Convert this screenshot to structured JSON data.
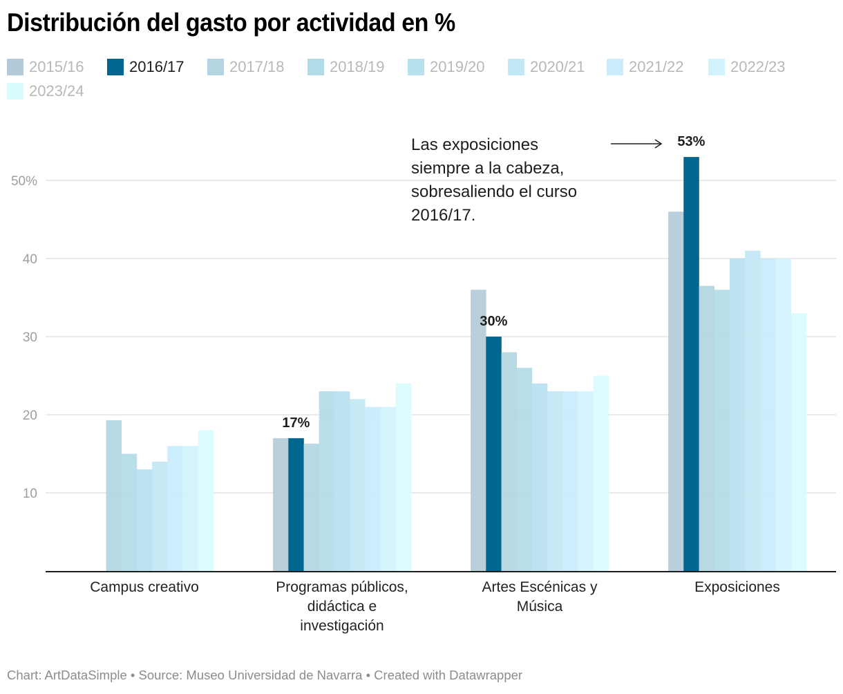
{
  "title": "Distribución del gasto por actividad en %",
  "legend": {
    "highlighted": "2016/17"
  },
  "annotation": {
    "text_lines": [
      "Las exposiciones",
      "siempre a la cabeza,",
      "sobresaliendo el curso",
      "2016/17."
    ],
    "arrow": "right-arrow"
  },
  "footer": "Chart: ArtDataSimple • Source: Museo Universidad de Navarra • Created with Datawrapper",
  "chart_data": {
    "type": "bar",
    "title": "Distribución del gasto por actividad en %",
    "xlabel": "",
    "ylabel": "",
    "ylim": [
      0,
      55
    ],
    "yticks": [
      10,
      20,
      30,
      40,
      50
    ],
    "ytick_labels": [
      "10",
      "20",
      "30",
      "40",
      "50%"
    ],
    "grid": true,
    "legend_position": "top-left",
    "categories": [
      "Campus creativo",
      "Programas públicos, didáctica e investigación",
      "Artes Escénicas y Música",
      "Exposiciones"
    ],
    "category_label_lines": [
      [
        "Campus creativo"
      ],
      [
        "Programas públicos,",
        "didáctica e",
        "investigación"
      ],
      [
        "Artes Escénicas y",
        "Música"
      ],
      [
        "Exposiciones"
      ]
    ],
    "series": [
      {
        "name": "2015/16",
        "color": "#b3cbd8",
        "values": [
          null,
          17,
          36,
          46
        ]
      },
      {
        "name": "2016/17",
        "color": "#00668f",
        "values": [
          null,
          17,
          30,
          53
        ]
      },
      {
        "name": "2017/18",
        "color": "#b2d5e1",
        "values": [
          19.3,
          16.3,
          28,
          36.5
        ]
      },
      {
        "name": "2018/19",
        "color": "#b2dbe8",
        "values": [
          15,
          23,
          26,
          36
        ]
      },
      {
        "name": "2019/20",
        "color": "#b7e1ef",
        "values": [
          13,
          23,
          24,
          40
        ]
      },
      {
        "name": "2020/21",
        "color": "#c2e7f5",
        "values": [
          14,
          22,
          23,
          41
        ]
      },
      {
        "name": "2021/22",
        "color": "#c8ecfb",
        "values": [
          16,
          21,
          23,
          40
        ]
      },
      {
        "name": "2022/23",
        "color": "#d1f3fd",
        "values": [
          16,
          21,
          23,
          40
        ]
      },
      {
        "name": "2023/24",
        "color": "#d9fbfd",
        "values": [
          18,
          24,
          25,
          33
        ]
      }
    ],
    "data_labels": [
      {
        "series": "2016/17",
        "category": "Programas públicos, didáctica e investigación",
        "text": "17%"
      },
      {
        "series": "2016/17",
        "category": "Artes Escénicas y Música",
        "text": "30%"
      },
      {
        "series": "2016/17",
        "category": "Exposiciones",
        "text": "53%"
      }
    ]
  }
}
